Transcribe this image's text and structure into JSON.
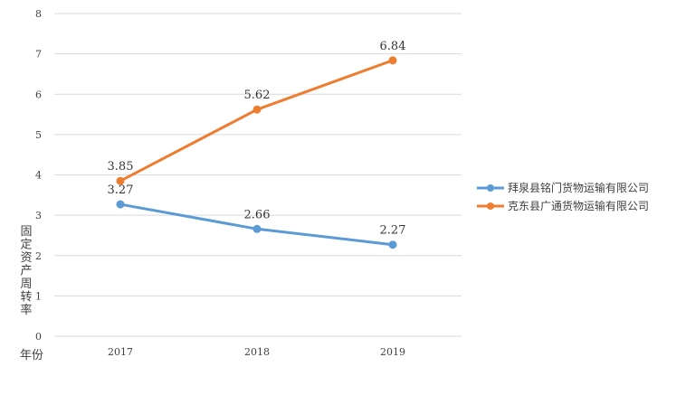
{
  "chart_data": {
    "type": "line",
    "x": [
      "2017",
      "2018",
      "2019"
    ],
    "series": [
      {
        "name": "拜泉县铭门货物运输有限公司",
        "values": [
          3.27,
          2.66,
          2.27
        ],
        "color": "#5B9BD5"
      },
      {
        "name": "克东县广通货物运输有限公司",
        "values": [
          3.85,
          5.62,
          6.84
        ],
        "color": "#ED7D31"
      }
    ],
    "ylabel": "固定资产周转率",
    "xlabel": "年份",
    "ylim": [
      0,
      8
    ],
    "yticks": [
      0,
      1,
      2,
      3,
      4,
      5,
      6,
      7,
      8
    ],
    "grid": true,
    "legend_position": "right"
  }
}
